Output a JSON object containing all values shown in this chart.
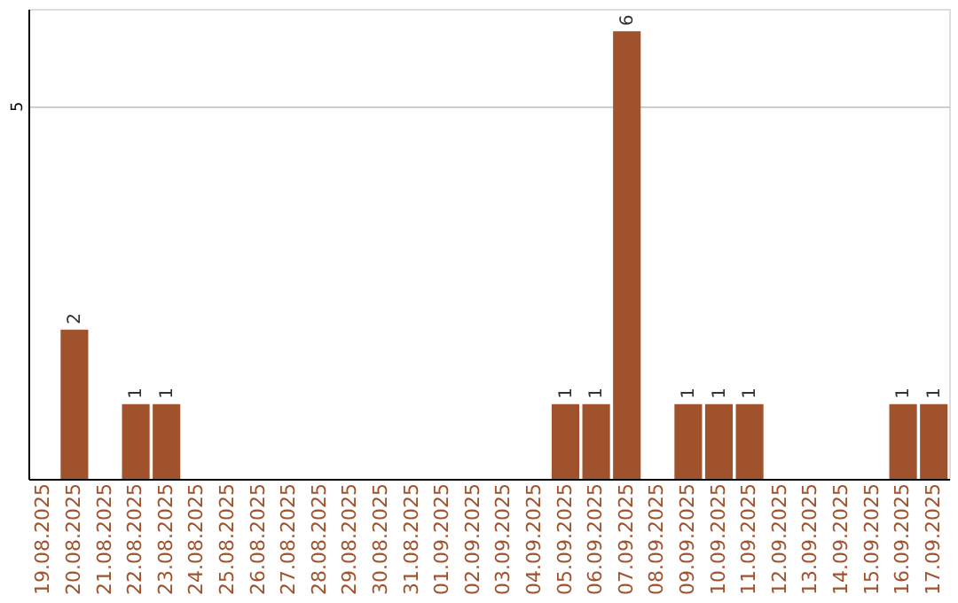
{
  "chart_data": {
    "type": "bar",
    "categories": [
      "19.08.2025",
      "20.08.2025",
      "21.08.2025",
      "22.08.2025",
      "23.08.2025",
      "24.08.2025",
      "25.08.2025",
      "26.08.2025",
      "27.08.2025",
      "28.08.2025",
      "29.08.2025",
      "30.08.2025",
      "31.08.2025",
      "01.09.2025",
      "02.09.2025",
      "03.09.2025",
      "04.09.2025",
      "05.09.2025",
      "06.09.2025",
      "07.09.2025",
      "08.09.2025",
      "09.09.2025",
      "10.09.2025",
      "11.09.2025",
      "12.09.2025",
      "13.09.2025",
      "14.09.2025",
      "15.09.2025",
      "16.09.2025",
      "17.09.2025"
    ],
    "values": [
      0,
      2,
      0,
      1,
      1,
      0,
      0,
      0,
      0,
      0,
      0,
      0,
      0,
      0,
      0,
      0,
      0,
      1,
      1,
      6,
      0,
      1,
      1,
      1,
      0,
      0,
      0,
      0,
      1,
      1
    ],
    "value_labels": [
      null,
      "2",
      null,
      "1",
      "1",
      null,
      null,
      null,
      null,
      null,
      null,
      null,
      null,
      null,
      null,
      null,
      null,
      "1",
      "1",
      "6",
      null,
      "1",
      "1",
      "1",
      null,
      null,
      null,
      null,
      "1",
      "1"
    ],
    "color": "#a0522d",
    "ylim": [
      0,
      6.3
    ],
    "yticks": [
      5
    ],
    "grid": "y"
  }
}
